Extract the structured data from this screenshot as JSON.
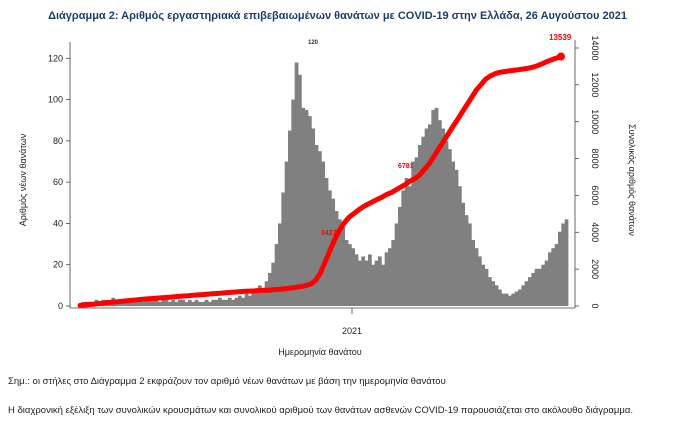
{
  "page": {
    "title": "Διάγραμμα 2: Αριθμός εργαστηριακά επιβεβαιωμένων θανάτων με COVID-19 στην Ελλάδα, 26 Αυγούστου 2021",
    "note1": "Σημ.: οι στήλες στο Διάγραμμα 2 εκφράζουν τον αριθμό νέων θανάτων με βάση την ημερομηνία θανάτου",
    "note2": "Η διαχρονική εξέλιξη των συνολικών κρουσμάτων και συνολικού αριθμού των θανάτων ασθενών COVID-19 παρουσιάζεται στο ακόλουθο διάγραμμα."
  },
  "chart_data": {
    "type": "bar",
    "xlabel": "Ημερομηνία θανάτου",
    "ylabel": "Αριθμός νέων θανάτων",
    "y2label": "Συνολικός αριθμός θανάτων",
    "ylim": [
      0,
      125
    ],
    "y2lim": [
      0,
      14000
    ],
    "yticks": [
      "0",
      "20",
      "40",
      "60",
      "80",
      "100",
      "120"
    ],
    "y2ticks": [
      "0",
      "2000",
      "4000",
      "6000",
      "8000",
      "10000",
      "12000",
      "14000"
    ],
    "xtick_label": "2021",
    "colors": {
      "bars": "#808080",
      "cumulative": "#ff0000",
      "title": "#1f3c6e"
    },
    "series": [
      {
        "kind": "bar",
        "values": [
          1,
          2,
          2,
          2,
          2,
          3,
          2,
          3,
          3,
          2,
          4,
          3,
          3,
          2,
          3,
          3,
          2,
          3,
          3,
          2,
          3,
          4,
          3,
          3,
          2,
          3,
          3,
          2,
          3,
          2,
          3,
          3,
          2,
          3,
          2,
          3,
          2,
          2,
          3,
          2,
          3,
          3,
          4,
          3,
          3,
          4,
          3,
          4,
          5,
          4,
          6,
          5,
          8,
          7,
          10,
          8,
          12,
          16,
          21,
          30,
          40,
          55,
          70,
          85,
          100,
          118,
          112,
          96,
          95,
          92,
          86,
          78,
          75,
          70,
          62,
          56,
          52,
          46,
          42,
          38,
          32,
          30,
          28,
          25,
          22,
          24,
          22,
          25,
          20,
          22,
          24,
          20,
          26,
          28,
          32,
          40,
          48,
          56,
          62,
          58,
          70,
          72,
          78,
          82,
          86,
          88,
          95,
          96,
          90,
          86,
          80,
          76,
          70,
          66,
          58,
          50,
          44,
          40,
          32,
          28,
          24,
          20,
          18,
          14,
          12,
          10,
          8,
          6,
          6,
          5,
          6,
          7,
          8,
          10,
          12,
          14,
          16,
          18,
          18,
          20,
          22,
          26,
          28,
          30,
          36,
          40,
          42
        ]
      },
      {
        "kind": "line",
        "values": [
          30,
          55,
          80,
          105,
          130,
          160,
          185,
          210,
          235,
          260,
          280,
          310,
          335,
          360,
          380,
          400,
          420,
          440,
          460,
          480,
          500,
          520,
          540,
          560,
          580,
          600,
          620,
          640,
          660,
          680,
          700,
          720,
          740,
          760,
          780,
          800,
          810,
          820,
          840,
          850,
          860,
          880,
          900,
          920,
          950,
          980,
          1020,
          1060,
          1120,
          1200,
          1400,
          1800,
          2400,
          3000,
          3600,
          4100,
          4500,
          4800,
          5000,
          5200,
          5380,
          5520,
          5650,
          5780,
          5900,
          6050,
          6150,
          6300,
          6450,
          6600,
          6781,
          6900,
          7100,
          7400,
          7700,
          8100,
          8500,
          8900,
          9300,
          9700,
          10100,
          10500,
          10900,
          11300,
          11700,
          12000,
          12300,
          12480,
          12600,
          12680,
          12720,
          12760,
          12790,
          12820,
          12860,
          12900,
          12960,
          13040,
          13140,
          13260,
          13360,
          13450,
          13539
        ]
      }
    ],
    "annotations": [
      "120",
      "3427",
      "6781",
      "13539"
    ]
  }
}
